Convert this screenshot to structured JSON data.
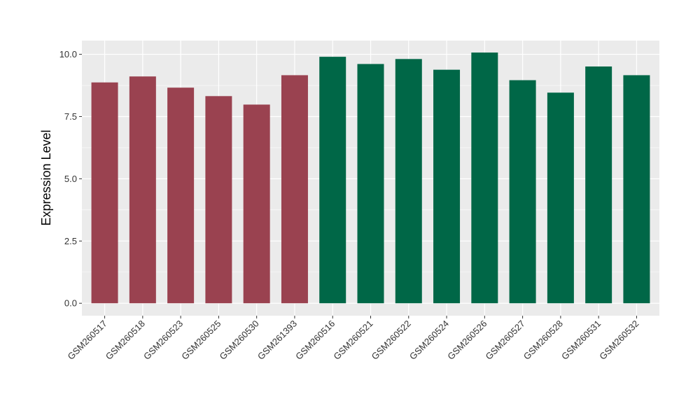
{
  "chart_data": {
    "type": "bar",
    "title": "",
    "xlabel": "",
    "ylabel": "Expression Level",
    "ylim": [
      -0.5,
      10.55
    ],
    "yticks": [
      0.0,
      2.5,
      5.0,
      7.5,
      10.0
    ],
    "ytick_labels": [
      "0.0",
      "2.5",
      "5.0",
      "7.5",
      "10.0"
    ],
    "grid": true,
    "legend": "none",
    "categories": [
      "GSM260517",
      "GSM260518",
      "GSM260523",
      "GSM260525",
      "GSM260530",
      "GSM261393",
      "GSM260516",
      "GSM260521",
      "GSM260522",
      "GSM260524",
      "GSM260526",
      "GSM260527",
      "GSM260528",
      "GSM260531",
      "GSM260532"
    ],
    "values": [
      8.87,
      9.11,
      8.66,
      8.32,
      7.98,
      9.16,
      9.9,
      9.61,
      9.81,
      9.38,
      10.07,
      8.96,
      8.46,
      9.51,
      9.16
    ],
    "bar_colors": [
      "#9a4250",
      "#9a4250",
      "#9a4250",
      "#9a4250",
      "#9a4250",
      "#9a4250",
      "#006747",
      "#006747",
      "#006747",
      "#006747",
      "#006747",
      "#006747",
      "#006747",
      "#006747",
      "#006747"
    ]
  },
  "colors": {
    "panel_background": "#ebebeb",
    "gridline": "#ffffff",
    "group_a": "#9a4250",
    "group_b": "#006747"
  }
}
